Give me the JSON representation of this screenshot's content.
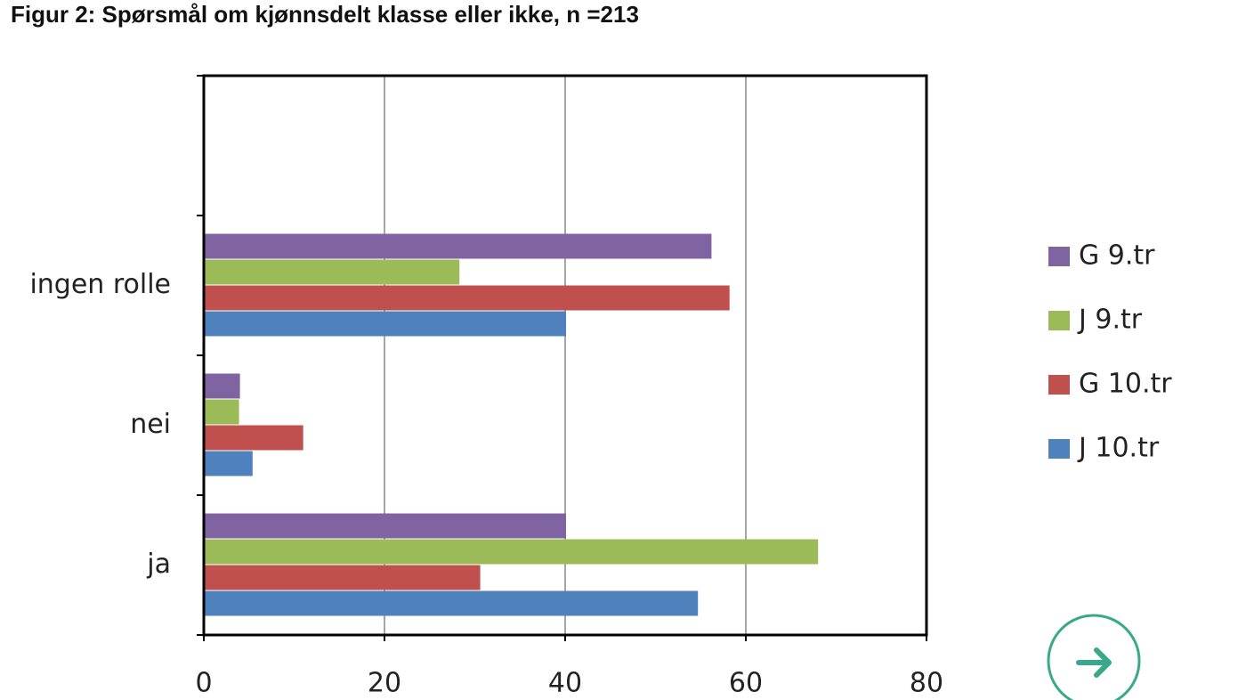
{
  "chart_data": {
    "type": "hbar",
    "title": "Figur 2: Spørsmål om kjønnsdelt klasse eller ikke, n =213",
    "categories": [
      "ja",
      "nei",
      "ingen rolle",
      null
    ],
    "series": [
      {
        "name": "G 9.tr",
        "color": "#8064a2",
        "values": [
          40.1,
          4.0,
          56.2,
          null
        ]
      },
      {
        "name": "J 9.tr",
        "color": "#9bbb59",
        "values": [
          68.0,
          3.9,
          28.3,
          null
        ]
      },
      {
        "name": "G 10.tr",
        "color": "#c0504d",
        "values": [
          30.6,
          11.0,
          58.2,
          null
        ]
      },
      {
        "name": "J 10.tr",
        "color": "#4f81bd",
        "values": [
          54.7,
          5.4,
          40.1,
          null
        ]
      }
    ],
    "xlim": [
      0,
      80
    ],
    "xticks": [
      0,
      20,
      40,
      60,
      80
    ],
    "grid": true,
    "legend": "right"
  }
}
